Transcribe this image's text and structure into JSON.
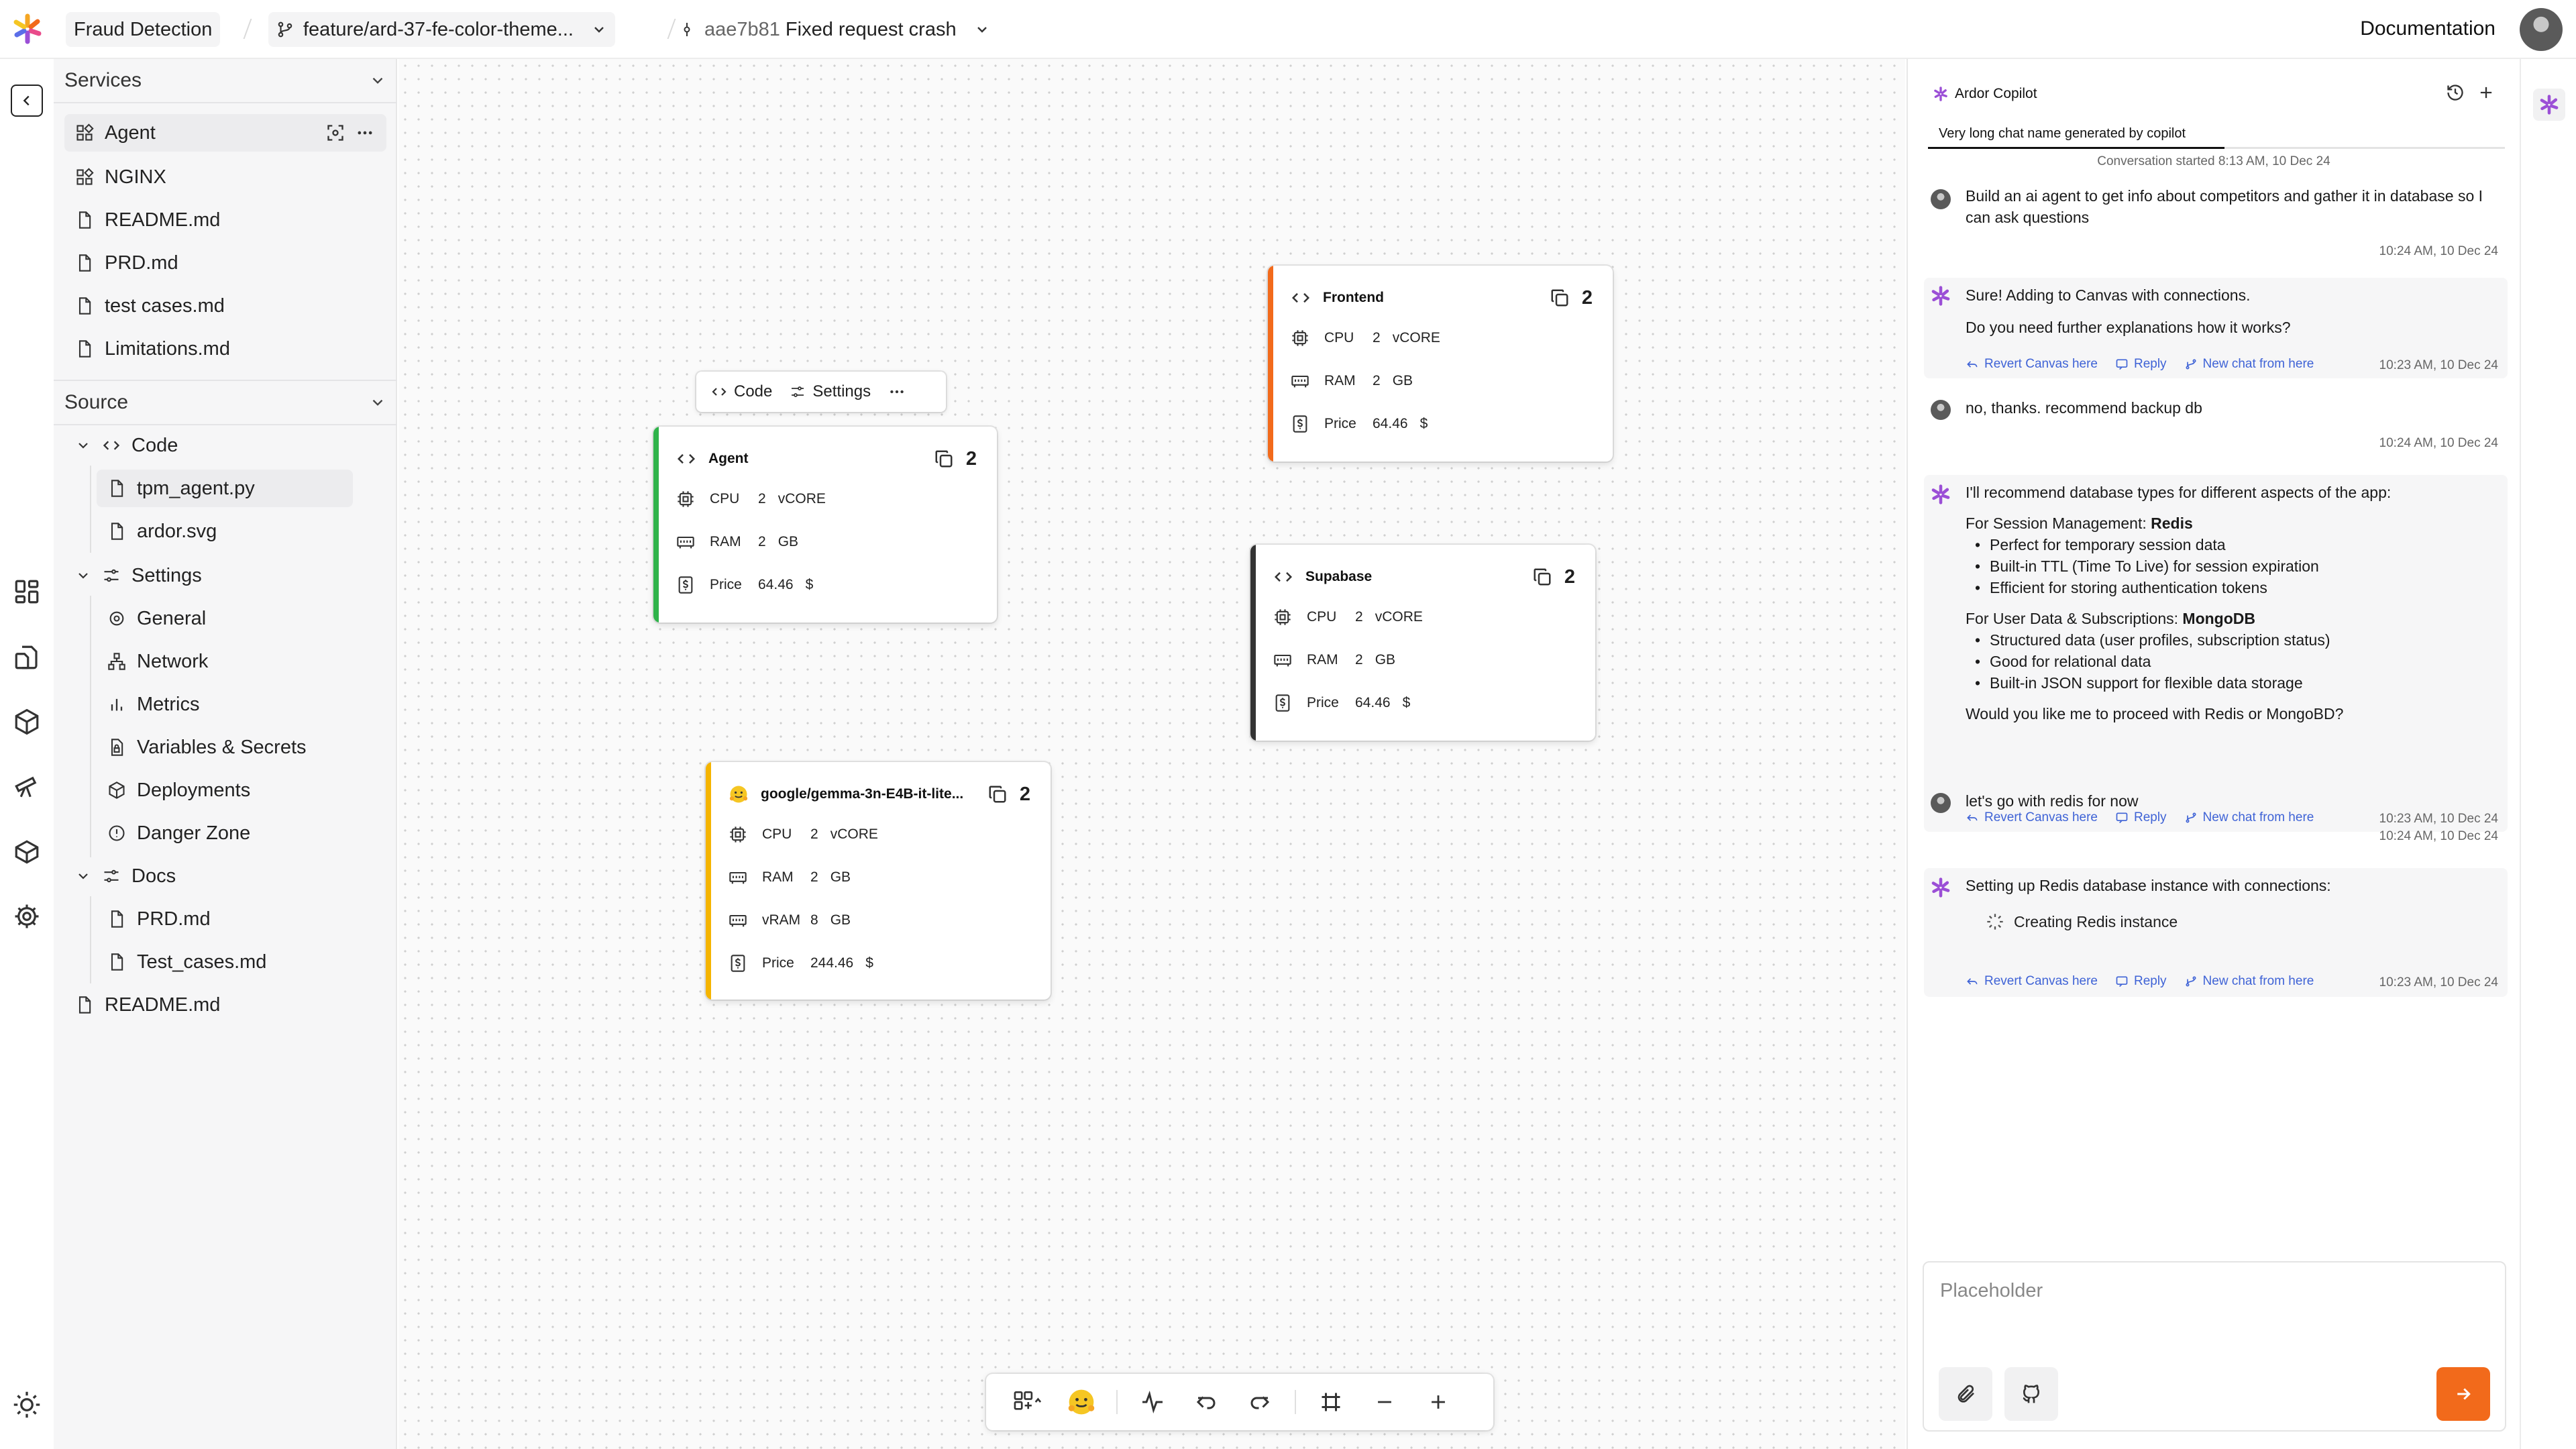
{
  "topbar": {
    "project": "Fraud Detection",
    "branch": "feature/ard-37-fe-color-theme...",
    "commit_hash": "aae7b81",
    "commit_message": "Fixed request crash",
    "documentation": "Documentation"
  },
  "sidebar": {
    "services_title": "Services",
    "services": [
      "Agent",
      "NGINX",
      "README.md",
      "PRD.md",
      "test cases.md",
      "Limitations.md"
    ],
    "source_title": "Source",
    "code_folder": "Code",
    "code_files": [
      "tpm_agent.py",
      "ardor.svg"
    ],
    "settings_folder": "Settings",
    "settings_items": [
      "General",
      "Network",
      "Metrics",
      "Variables & Secrets",
      "Deployments",
      "Danger Zone"
    ],
    "docs_folder": "Docs",
    "docs_files": [
      "PRD.md",
      "Test_cases.md"
    ],
    "root_file": "README.md"
  },
  "canvas": {
    "node_toolbar": {
      "code": "Code",
      "settings": "Settings"
    },
    "nodes": [
      {
        "title": "Agent",
        "count": "2",
        "accent": "#2fb34a",
        "rows": [
          {
            "label": "CPU",
            "value": "2",
            "unit": "vCORE"
          },
          {
            "label": "RAM",
            "value": "2",
            "unit": "GB"
          },
          {
            "label": "Price",
            "value": "64.46",
            "unit": "$"
          }
        ]
      },
      {
        "title": "Frontend",
        "count": "2",
        "accent": "#f26a1b",
        "rows": [
          {
            "label": "CPU",
            "value": "2",
            "unit": "vCORE"
          },
          {
            "label": "RAM",
            "value": "2",
            "unit": "GB"
          },
          {
            "label": "Price",
            "value": "64.46",
            "unit": "$"
          }
        ]
      },
      {
        "title": "Supabase",
        "count": "2",
        "accent": "#333333",
        "rows": [
          {
            "label": "CPU",
            "value": "2",
            "unit": "vCORE"
          },
          {
            "label": "RAM",
            "value": "2",
            "unit": "GB"
          },
          {
            "label": "Price",
            "value": "64.46",
            "unit": "$"
          }
        ]
      },
      {
        "title": "google/gemma-3n-E4B-it-lite...",
        "count": "2",
        "accent": "#f5b400",
        "rows": [
          {
            "label": "CPU",
            "value": "2",
            "unit": "vCORE"
          },
          {
            "label": "RAM",
            "value": "2",
            "unit": "GB"
          },
          {
            "label": "vRAM",
            "value": "8",
            "unit": "GB"
          },
          {
            "label": "Price",
            "value": "244.46",
            "unit": "$"
          }
        ]
      }
    ]
  },
  "chat": {
    "title": "Ardor Copilot",
    "tab": "Very long chat name generated by copilot",
    "conversation_started": "Conversation started 8:13 AM, 10 Dec 24",
    "actions": {
      "revert": "Revert Canvas here",
      "reply": "Reply",
      "new_chat": "New chat from here"
    },
    "m1": {
      "text": "Build an ai agent to get info about competitors and gather it in database so I can ask questions",
      "time": "10:24 AM, 10 Dec 24"
    },
    "m2": {
      "line1": "Sure! Adding to Canvas with connections.",
      "line2": "Do you need further explanations how it works?",
      "time": "10:23 AM, 10 Dec 24"
    },
    "m3": {
      "text": "no, thanks. recommend backup db",
      "time": "10:24 AM, 10 Dec 24"
    },
    "m4": {
      "intro": "I'll recommend database types for different aspects of the app:",
      "s1_label": "For Session Management: ",
      "s1_bold": "Redis",
      "s1_items": [
        "Perfect for temporary session data",
        "Built-in TTL (Time To Live) for session expiration",
        "Efficient for storing authentication tokens"
      ],
      "s2_label": "For User Data & Subscriptions: ",
      "s2_bold": "MongoDB",
      "s2_items": [
        "Structured data (user profiles, subscription status)",
        "Good for relational data",
        "Built-in JSON support for flexible data storage"
      ],
      "question": "Would you like me to proceed with Redis or MongoBD?",
      "time": "10:23 AM, 10 Dec 24"
    },
    "m5": {
      "text": "let's go with redis for now",
      "time": "10:24 AM, 10 Dec 24"
    },
    "m6": {
      "text": "Setting up Redis database instance with connections:",
      "status": "Creating Redis instance",
      "time": "10:23 AM, 10 Dec 24"
    },
    "composer_placeholder": "Placeholder"
  }
}
